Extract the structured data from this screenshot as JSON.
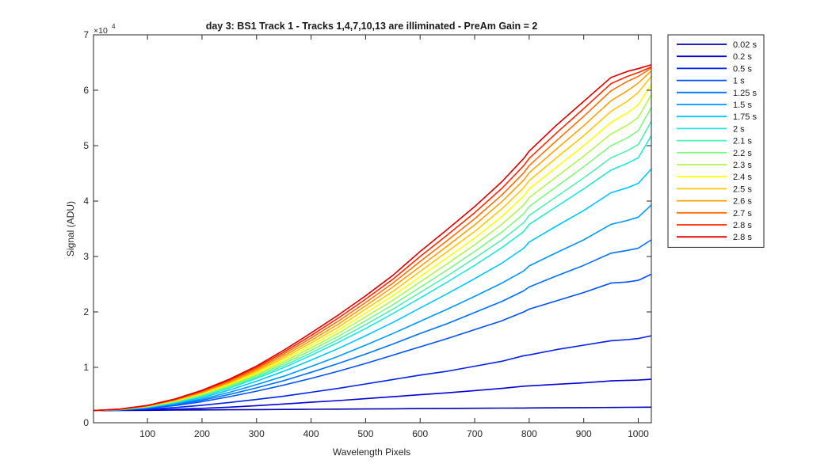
{
  "chart_data": {
    "type": "line",
    "title": "day 3: BS1  Track 1 - Tracks 1,4,7,10,13 are illiminated - PreAm Gain = 2",
    "xlabel": "Wavelength Pixels",
    "ylabel": "Signal (ADU)",
    "y_exponent_label": "×10",
    "y_exponent_power": "4",
    "y_scale_factor": 10000,
    "xlim": [
      1,
      1024
    ],
    "ylim": [
      0,
      70000
    ],
    "x_ticks": [
      100,
      200,
      300,
      400,
      500,
      600,
      700,
      800,
      900,
      1000
    ],
    "x_tick_labels": [
      "100",
      "200",
      "300",
      "400",
      "500",
      "600",
      "700",
      "800",
      "900",
      "1000"
    ],
    "y_ticks": [
      0,
      10000,
      20000,
      30000,
      40000,
      50000,
      60000,
      70000
    ],
    "y_tick_labels": [
      "0",
      "1",
      "2",
      "3",
      "4",
      "5",
      "6",
      "7"
    ],
    "grid": false,
    "legend_position": "outside-top-right",
    "x": [
      1,
      50,
      100,
      150,
      200,
      250,
      300,
      350,
      400,
      450,
      500,
      550,
      600,
      650,
      700,
      750,
      790,
      800,
      850,
      900,
      950,
      980,
      1000,
      1024
    ],
    "series": [
      {
        "name": "0.02 s",
        "color": "#0000b0",
        "values": [
          2200,
          2220,
          2250,
          2280,
          2310,
          2340,
          2370,
          2400,
          2430,
          2460,
          2490,
          2520,
          2550,
          2580,
          2610,
          2640,
          2660,
          2670,
          2700,
          2730,
          2760,
          2780,
          2800,
          2820
        ]
      },
      {
        "name": "0.2 s",
        "color": "#0000d8",
        "values": [
          2200,
          2240,
          2320,
          2440,
          2600,
          2820,
          3080,
          3380,
          3700,
          4000,
          4350,
          4700,
          5050,
          5400,
          5800,
          6200,
          6600,
          6650,
          6950,
          7200,
          7550,
          7650,
          7700,
          7850
        ]
      },
      {
        "name": "0.5 s",
        "color": "#0020f0",
        "values": [
          2200,
          2280,
          2450,
          2750,
          3150,
          3650,
          4200,
          4800,
          5500,
          6200,
          7000,
          7800,
          8600,
          9300,
          10200,
          11100,
          12100,
          12250,
          13200,
          14000,
          14800,
          15000,
          15200,
          15700
        ]
      },
      {
        "name": "1 s",
        "color": "#0050ff",
        "values": [
          2200,
          2300,
          2600,
          3100,
          3800,
          4700,
          5700,
          6800,
          8000,
          9300,
          10700,
          12200,
          13700,
          15200,
          16800,
          18400,
          20000,
          20500,
          22000,
          23500,
          25200,
          25400,
          25700,
          26800
        ]
      },
      {
        "name": "1.25 s",
        "color": "#0070ff",
        "values": [
          2200,
          2320,
          2680,
          3250,
          4050,
          5100,
          6300,
          7600,
          9100,
          10700,
          12400,
          14200,
          16100,
          17900,
          19900,
          21900,
          23800,
          24500,
          26500,
          28400,
          30600,
          31100,
          31500,
          33000
        ]
      },
      {
        "name": "1.5 s",
        "color": "#0098ff",
        "values": [
          2200,
          2340,
          2740,
          3380,
          4280,
          5480,
          6880,
          8400,
          10150,
          12000,
          14000,
          16100,
          18300,
          20500,
          22800,
          25200,
          27400,
          28300,
          30700,
          33000,
          35800,
          36500,
          37100,
          39300
        ]
      },
      {
        "name": "1.75 s",
        "color": "#00c8ff",
        "values": [
          2200,
          2360,
          2800,
          3520,
          4550,
          5900,
          7500,
          9300,
          11300,
          13400,
          15700,
          18100,
          20700,
          23300,
          26000,
          28800,
          31500,
          32600,
          35500,
          38300,
          41500,
          42400,
          43200,
          45800
        ]
      },
      {
        "name": "2 s",
        "color": "#20e8e0",
        "values": [
          2200,
          2380,
          2860,
          3650,
          4780,
          6250,
          8000,
          9950,
          12150,
          14500,
          17000,
          19700,
          22500,
          25400,
          28400,
          31600,
          34500,
          35800,
          39000,
          42200,
          45600,
          46800,
          47800,
          51800
        ]
      },
      {
        "name": "2.1 s",
        "color": "#50f0b0",
        "values": [
          2200,
          2390,
          2890,
          3720,
          4900,
          6420,
          8250,
          10300,
          12600,
          15050,
          17700,
          20500,
          23500,
          26500,
          29700,
          33000,
          36100,
          37400,
          40800,
          44200,
          47800,
          49100,
          50200,
          54400
        ]
      },
      {
        "name": "2.2 s",
        "color": "#80f880",
        "values": [
          2200,
          2400,
          2920,
          3790,
          5020,
          6600,
          8500,
          10650,
          13050,
          15600,
          18400,
          21300,
          24450,
          27600,
          30900,
          34400,
          37700,
          39000,
          42600,
          46200,
          50000,
          51400,
          52700,
          56900
        ]
      },
      {
        "name": "2.3 s",
        "color": "#b0f850",
        "values": [
          2200,
          2410,
          2950,
          3860,
          5140,
          6780,
          8750,
          11000,
          13500,
          16150,
          19100,
          22100,
          25400,
          28700,
          32100,
          35800,
          39300,
          40600,
          44400,
          48100,
          52100,
          53700,
          55100,
          59200
        ]
      },
      {
        "name": "2.4 s",
        "color": "#ffff00",
        "values": [
          2200,
          2420,
          2980,
          3930,
          5260,
          6960,
          9000,
          11350,
          13950,
          16700,
          19800,
          22900,
          26350,
          29800,
          33300,
          37200,
          40900,
          42200,
          46100,
          50000,
          54200,
          55900,
          57400,
          61000
        ]
      },
      {
        "name": "2.5 s",
        "color": "#ffc800",
        "values": [
          2200,
          2430,
          3010,
          4000,
          5380,
          7140,
          9250,
          11700,
          14400,
          17250,
          20500,
          23700,
          27300,
          30900,
          34500,
          38600,
          42400,
          43700,
          47800,
          51800,
          56200,
          58000,
          59600,
          62500
        ]
      },
      {
        "name": "2.6 s",
        "color": "#ffa000",
        "values": [
          2200,
          2440,
          3040,
          4070,
          5500,
          7320,
          9500,
          12050,
          14850,
          17800,
          21100,
          24500,
          28200,
          31900,
          35700,
          39900,
          43800,
          45100,
          49400,
          53600,
          58100,
          59900,
          61300,
          63500
        ]
      },
      {
        "name": "2.7 s",
        "color": "#ff7000",
        "values": [
          2200,
          2450,
          3070,
          4140,
          5620,
          7500,
          9750,
          12400,
          15300,
          18350,
          21700,
          25200,
          29100,
          32900,
          36800,
          41100,
          45100,
          46400,
          50900,
          55300,
          59900,
          61600,
          62500,
          64000
        ]
      },
      {
        "name": "2.8 s",
        "color": "#ff2800",
        "values": [
          2200,
          2460,
          3100,
          4210,
          5740,
          7680,
          10000,
          12750,
          15750,
          18900,
          22300,
          25900,
          30000,
          33900,
          37900,
          42300,
          46400,
          47700,
          52300,
          56700,
          61200,
          62500,
          63200,
          64200
        ]
      },
      {
        "name": "2.8 s",
        "color": "#e00000",
        "values": [
          2200,
          2470,
          3130,
          4280,
          5860,
          7860,
          10250,
          13100,
          16200,
          19450,
          22900,
          26600,
          30900,
          34900,
          39000,
          43500,
          47700,
          49000,
          53700,
          58000,
          62300,
          63400,
          63900,
          64600
        ]
      }
    ]
  }
}
